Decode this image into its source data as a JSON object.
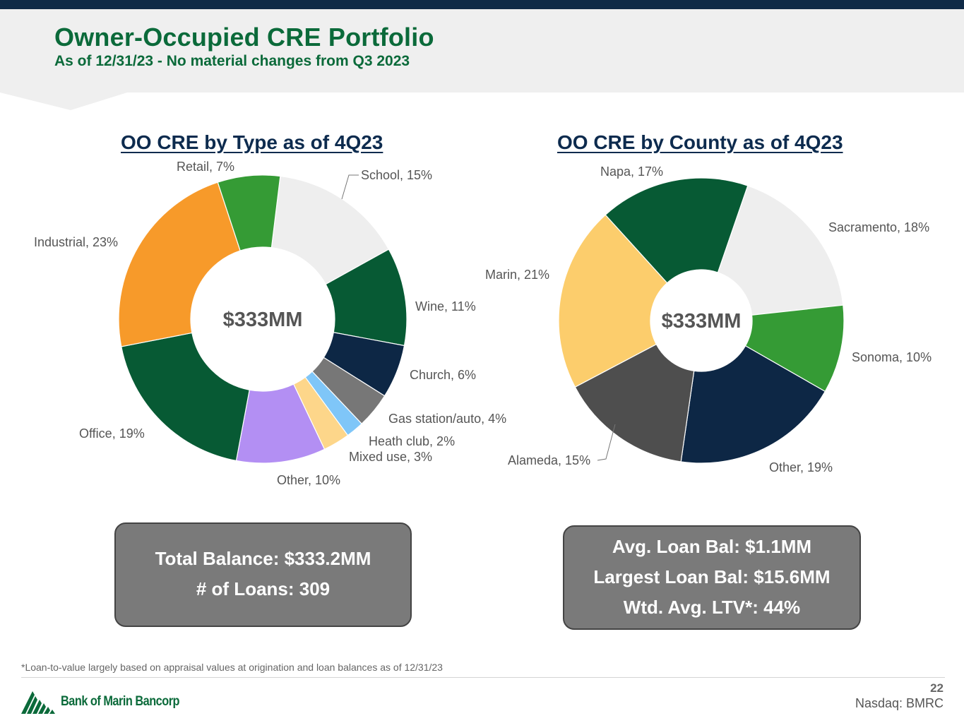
{
  "header": {
    "title": "Owner-Occupied CRE Portfolio",
    "subtitle": "As of 12/31/23 - No material changes from Q3 2023"
  },
  "chart_data": [
    {
      "type": "pie",
      "variant": "donut",
      "title": "OO CRE by Type as of 4Q23",
      "center_label": "$333MM",
      "unit": "%",
      "slices": [
        {
          "name": "School",
          "value": 15,
          "label": "School, 15%",
          "color": "#eeeeee"
        },
        {
          "name": "Wine",
          "value": 11,
          "label": "Wine, 11%",
          "color": "#075a34"
        },
        {
          "name": "Church",
          "value": 6,
          "label": "Church, 6%",
          "color": "#0d2745"
        },
        {
          "name": "Gas station/auto",
          "value": 4,
          "label": "Gas station/auto, 4%",
          "color": "#777777"
        },
        {
          "name": "Heath club",
          "value": 2,
          "label": "Heath club, 2%",
          "color": "#7fc6f8"
        },
        {
          "name": "Mixed use",
          "value": 3,
          "label": "Mixed use, 3%",
          "color": "#fdd68a"
        },
        {
          "name": "Other",
          "value": 10,
          "label": "Other, 10%",
          "color": "#b38ff3"
        },
        {
          "name": "Office",
          "value": 19,
          "label": "Office, 19%",
          "color": "#075a34"
        },
        {
          "name": "Industrial",
          "value": 23,
          "label": "Industrial, 23%",
          "color": "#f79a2a"
        },
        {
          "name": "Retail",
          "value": 7,
          "label": "Retail, 7%",
          "color": "#359b35"
        }
      ]
    },
    {
      "type": "pie",
      "variant": "donut",
      "title": "OO CRE by County as of 4Q23",
      "center_label": "$333MM",
      "unit": "%",
      "slices": [
        {
          "name": "Sacramento",
          "value": 18,
          "label": "Sacramento, 18%",
          "color": "#eeeeee"
        },
        {
          "name": "Sonoma",
          "value": 10,
          "label": "Sonoma, 10%",
          "color": "#359b35"
        },
        {
          "name": "Other",
          "value": 19,
          "label": "Other, 19%",
          "color": "#0d2745"
        },
        {
          "name": "Alameda",
          "value": 15,
          "label": "Alameda, 15%",
          "color": "#4e4e4e"
        },
        {
          "name": "Marin",
          "value": 21,
          "label": "Marin, 21%",
          "color": "#fccd6c"
        },
        {
          "name": "Napa",
          "value": 17,
          "label": "Napa, 17%",
          "color": "#075a34"
        }
      ]
    }
  ],
  "info_left": {
    "line1": "Total Balance: $333.2MM",
    "line2": "# of Loans:  309"
  },
  "info_right": {
    "line1": "Avg. Loan Bal: $1.1MM",
    "line2": "Largest Loan Bal: $15.6MM",
    "line3": "Wtd. Avg. LTV*: 44%"
  },
  "footer": {
    "footnote": "*Loan-to-value largely based on appraisal values at origination and loan balances as of 12/31/23",
    "company": "Bank of Marin Bancorp",
    "page_number": "22",
    "ticker": "Nasdaq: BMRC"
  },
  "colors": {
    "brand_green": "#0b6a3a",
    "navy": "#0f2a47",
    "box_gray": "#7a7a7a",
    "header_band": "#efefef"
  }
}
